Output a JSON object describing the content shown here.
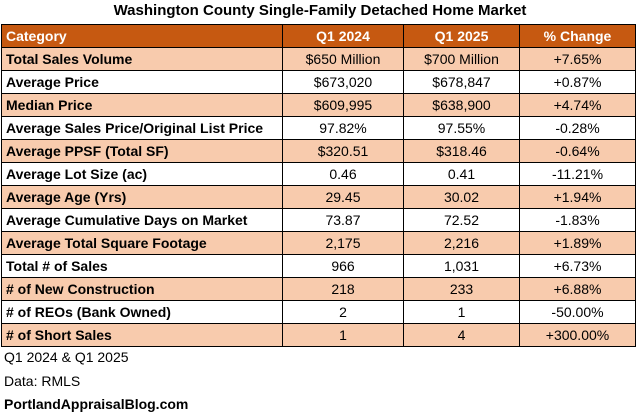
{
  "title": "Washington County Single-Family Detached Home Market",
  "table": {
    "header": [
      "Category",
      "Q1 2024",
      "Q1 2025",
      "% Change"
    ],
    "rows": [
      [
        "Total Sales Volume",
        "$650 Million",
        "$700 Million",
        "+7.65%"
      ],
      [
        "Average Price",
        "$673,020",
        "$678,847",
        "+0.87%"
      ],
      [
        "Median Price",
        "$609,995",
        "$638,900",
        "+4.74%"
      ],
      [
        "Average Sales Price/Original List Price",
        "97.82%",
        "97.55%",
        "-0.28%"
      ],
      [
        "Average PPSF (Total SF)",
        "$320.51",
        "$318.46",
        "-0.64%"
      ],
      [
        "Average Lot Size (ac)",
        "0.46",
        "0.41",
        "-11.21%"
      ],
      [
        "Average Age (Yrs)",
        "29.45",
        "30.02",
        "+1.94%"
      ],
      [
        "Average Cumulative Days on Market",
        "73.87",
        "72.52",
        "-1.83%"
      ],
      [
        "Average Total Square Footage",
        "2,175",
        "2,216",
        "+1.89%"
      ],
      [
        "Total # of Sales",
        "966",
        "1,031",
        "+6.73%"
      ],
      [
        "# of New Construction",
        "218",
        "233",
        "+6.88%"
      ],
      [
        "# of REOs (Bank Owned)",
        "2",
        "1",
        "-50.00%"
      ],
      [
        "# of Short Sales",
        "1",
        "4",
        "+300.00%"
      ]
    ]
  },
  "notes": [
    "Q1 2024 & Q1 2025",
    "Data: RMLS",
    "PortlandAppraisalBlog.com"
  ]
}
